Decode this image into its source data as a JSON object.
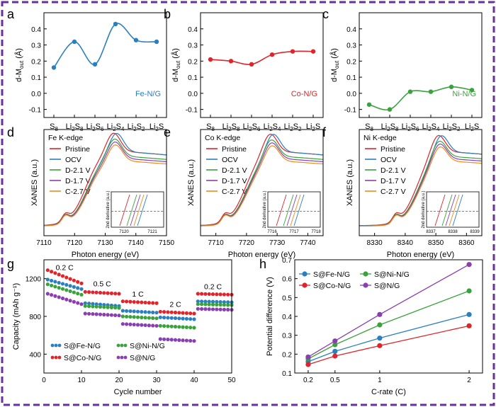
{
  "figure": {
    "frame_color": "#6b2fa0"
  },
  "chart_data": [
    {
      "panel": "a",
      "type": "line",
      "categories": [
        "S8",
        "Li2S8",
        "Li2S6",
        "Li2S4",
        "Li2S2",
        "Li2S"
      ],
      "ylabel": "d-M",
      "ylabel_sub": "out",
      "ylabel_unit": "(Å)",
      "ylim": [
        -0.15,
        0.5
      ],
      "yticks": [
        -0.1,
        0.0,
        0.1,
        0.2,
        0.3,
        0.4
      ],
      "series": [
        {
          "name": "Fe-N/G",
          "color": "#2a7fc0",
          "values": [
            0.16,
            0.32,
            0.18,
            0.43,
            0.33,
            0.32
          ]
        }
      ]
    },
    {
      "panel": "b",
      "type": "line",
      "categories": [
        "S8",
        "Li2S8",
        "Li2S6",
        "Li2S4",
        "Li2S2",
        "Li2S"
      ],
      "ylabel": "d-M",
      "ylabel_sub": "out",
      "ylabel_unit": "(Å)",
      "ylim": [
        -0.15,
        0.5
      ],
      "yticks": [
        -0.1,
        0.0,
        0.1,
        0.2,
        0.3,
        0.4
      ],
      "series": [
        {
          "name": "Co-N/G",
          "color": "#e0242b",
          "values": [
            0.21,
            0.2,
            0.18,
            0.24,
            0.26,
            0.26
          ]
        }
      ]
    },
    {
      "panel": "c",
      "type": "line",
      "categories": [
        "S8",
        "Li2S8",
        "Li2S6",
        "Li2S4",
        "Li2S2",
        "Li2S"
      ],
      "ylabel": "d-M",
      "ylabel_sub": "out",
      "ylabel_unit": "(Å)",
      "ylim": [
        -0.15,
        0.5
      ],
      "yticks": [
        -0.1,
        0.0,
        0.1,
        0.2,
        0.3,
        0.4
      ],
      "series": [
        {
          "name": "Ni-N/G",
          "color": "#3aa23c",
          "values": [
            -0.07,
            -0.1,
            0.01,
            0.01,
            0.04,
            0.02
          ]
        }
      ]
    },
    {
      "panel": "d",
      "type": "line",
      "title": "Fe K-edge",
      "xlabel": "Photon energy (eV)",
      "ylabel": "XANES (a.u.)",
      "xlim": [
        7110,
        7150
      ],
      "xticks": [
        7110,
        7120,
        7130,
        7140,
        7150
      ],
      "legend": [
        "Pristine",
        "OCV",
        "D-2.1 V",
        "D-1.7 V",
        "C-2.7 V"
      ],
      "legend_colors": [
        "#e0242b",
        "#2a7fc0",
        "#3aa23c",
        "#8a3fb0",
        "#ef8a1f"
      ],
      "edge": 7124,
      "peak": 7133,
      "inset": {
        "ylabel": "2nd derivative (a.u.)",
        "xticks": [
          7120,
          7121
        ]
      }
    },
    {
      "panel": "e",
      "type": "line",
      "title": "Co K-edge",
      "xlabel": "Photon energy (eV)",
      "ylabel": "XANES (a.u.)",
      "xlim": [
        7705,
        7745
      ],
      "xticks": [
        7710,
        7720,
        7730,
        7740
      ],
      "legend": [
        "Pristine",
        "OCV",
        "D-2.1 V",
        "D-1.7 V",
        "C-2.7 V"
      ],
      "legend_colors": [
        "#e0242b",
        "#2a7fc0",
        "#3aa23c",
        "#8a3fb0",
        "#ef8a1f"
      ],
      "edge": 7720,
      "peak": 7728,
      "inset": {
        "ylabel": "2nd derivative (a.u.)",
        "xticks": [
          7716,
          7717,
          7718
        ]
      }
    },
    {
      "panel": "f",
      "type": "line",
      "title": "Ni K-edge",
      "xlabel": "Photon energy (eV)",
      "ylabel": "XANES (a.u.)",
      "xlim": [
        8325,
        8365
      ],
      "xticks": [
        8330,
        8340,
        8350,
        8360
      ],
      "legend": [
        "Pristine",
        "OCV",
        "D-2.1 V",
        "D-1.7 V",
        "C-2.7 V"
      ],
      "legend_colors": [
        "#e0242b",
        "#2a7fc0",
        "#3aa23c",
        "#8a3fb0",
        "#ef8a1f"
      ],
      "edge": 8344,
      "peak": 8351,
      "inset": {
        "ylabel": "2nd derivative (a.u.)",
        "xticks": [
          8337,
          8338,
          8339
        ]
      }
    },
    {
      "panel": "g",
      "type": "scatter",
      "xlabel": "Cycle number",
      "ylabel": "Capacity (mAh g⁻¹)",
      "xlim": [
        0,
        50
      ],
      "ylim": [
        200,
        1400
      ],
      "xticks": [
        0,
        10,
        20,
        30,
        40,
        50
      ],
      "yticks": [
        400,
        800,
        1200
      ],
      "rate_labels": [
        {
          "text": "0.2 C",
          "x": 5.5,
          "y": 1290
        },
        {
          "text": "0.5 C",
          "x": 15.5,
          "y": 1120
        },
        {
          "text": "1 C",
          "x": 25,
          "y": 1010
        },
        {
          "text": "2 C",
          "x": 35,
          "y": 900
        },
        {
          "text": "0.2 C",
          "x": 45,
          "y": 1090
        }
      ],
      "legend": [
        "S@Fe-N/G",
        "S@Co-N/G",
        "S@Ni-N/G",
        "S@N/G"
      ],
      "series": [
        {
          "name": "S@Fe-N/G",
          "color": "#2a7fc0",
          "segments": [
            [
              1190,
              1090
            ],
            [
              940,
              910
            ],
            [
              860,
              840
            ],
            [
              790,
              770
            ],
            [
              960,
              950
            ]
          ]
        },
        {
          "name": "S@Co-N/G",
          "color": "#e0242b",
          "segments": [
            [
              1290,
              1150
            ],
            [
              1060,
              1040
            ],
            [
              960,
              940
            ],
            [
              850,
              830
            ],
            [
              1040,
              1030
            ]
          ]
        },
        {
          "name": "S@Ni-N/G",
          "color": "#3aa23c",
          "segments": [
            [
              1140,
              1030
            ],
            [
              910,
              890
            ],
            [
              800,
              780
            ],
            [
              700,
              680
            ],
            [
              930,
              920
            ]
          ]
        },
        {
          "name": "S@N/G",
          "color": "#8a3fb0",
          "segments": [
            [
              1040,
              930
            ],
            [
              830,
              810
            ],
            [
              720,
              700
            ],
            [
              560,
              540
            ],
            [
              880,
              870
            ]
          ]
        }
      ]
    },
    {
      "panel": "h",
      "type": "line",
      "xlabel": "C-rate (C)",
      "ylabel": "Potential difference (V)",
      "categories": [
        "0.2",
        "0.5",
        "1",
        "2"
      ],
      "ylim": [
        0.1,
        0.7
      ],
      "yticks": [
        0.1,
        0.2,
        0.3,
        0.4,
        0.5,
        0.6,
        0.7
      ],
      "legend": [
        "S@Fe-N/G",
        "S@Co-N/G",
        "S@Ni-N/G",
        "S@N/G"
      ],
      "series": [
        {
          "name": "S@Fe-N/G",
          "color": "#2a7fc0",
          "values": [
            0.16,
            0.215,
            0.285,
            0.41
          ]
        },
        {
          "name": "S@Co-N/G",
          "color": "#e0242b",
          "values": [
            0.145,
            0.19,
            0.245,
            0.35
          ]
        },
        {
          "name": "S@Ni-N/G",
          "color": "#3aa23c",
          "values": [
            0.175,
            0.25,
            0.355,
            0.535
          ]
        },
        {
          "name": "S@N/G",
          "color": "#8a3fb0",
          "values": [
            0.185,
            0.27,
            0.41,
            0.675
          ]
        }
      ]
    }
  ]
}
